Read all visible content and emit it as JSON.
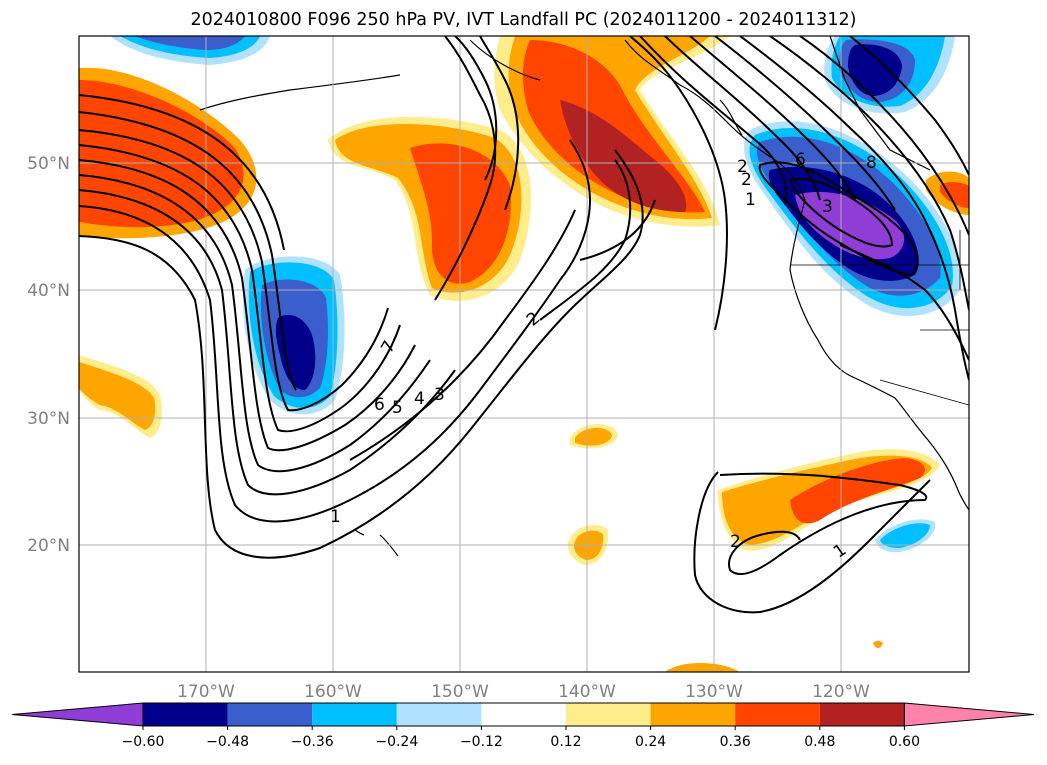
{
  "title": "2024010800 F096 250 hPa PV, IVT Landfall PC (2024011200 - 2024011312)",
  "axes": {
    "lon_ticks": [
      "170°W",
      "160°W",
      "150°W",
      "140°W",
      "130°W",
      "120°W"
    ],
    "lat_ticks": [
      "50°N",
      "40°N",
      "30°N",
      "20°N"
    ]
  },
  "contour_labels": [
    "7",
    "6",
    "5",
    "4",
    "3",
    "2",
    "2",
    "1",
    "1",
    "2",
    "3",
    "6",
    "8",
    "2",
    "1"
  ],
  "colorbar": {
    "colors": [
      "#8f3dd6",
      "#00008b",
      "#3a5fcd",
      "#00bfff",
      "#b0e2ff",
      "#ffffff",
      "#ffec8b",
      "#ffa500",
      "#ff4500",
      "#b22222",
      "#ff82ab"
    ],
    "labels": [
      "−0.60",
      "−0.48",
      "−0.36",
      "−0.24",
      "−0.12",
      "0.12",
      "0.24",
      "0.36",
      "0.48",
      "0.60"
    ]
  }
}
